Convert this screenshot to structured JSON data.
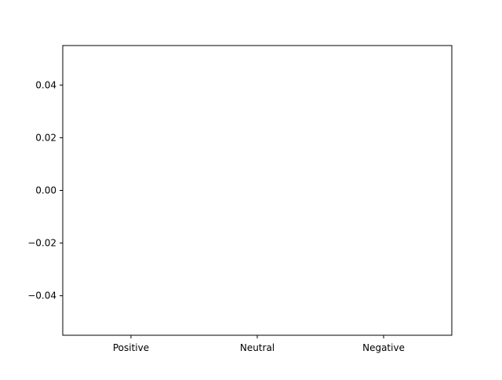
{
  "chart_data": {
    "type": "bar",
    "title": "",
    "xlabel": "",
    "ylabel": "",
    "categories": [
      "Positive",
      "Neutral",
      "Negative"
    ],
    "values": [
      0,
      0,
      0
    ],
    "ylim": [
      -0.055,
      0.055
    ],
    "yticks": [
      -0.04,
      -0.02,
      0.0,
      0.02,
      0.04
    ],
    "ytick_labels": [
      "−0.04",
      "−0.02",
      "0.00",
      "0.02",
      "0.04"
    ],
    "grid": false,
    "legend": "none",
    "colors": {
      "bar": "#1f77b4",
      "axes": "#000000",
      "background": "#ffffff"
    }
  }
}
